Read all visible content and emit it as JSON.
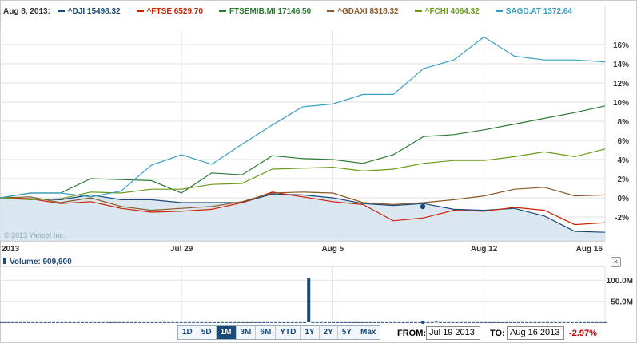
{
  "legend": {
    "date": "Aug 8, 2013:",
    "items": [
      {
        "label": "^DJI 15498.32",
        "color": "#1a4a7a"
      },
      {
        "label": "^FTSE 6529.70",
        "color": "#cc2200"
      },
      {
        "label": "FTSEMIB.MI 17146.50",
        "color": "#2a7a30"
      },
      {
        "label": "^GDAXI 8318.32",
        "color": "#8b5a2b"
      },
      {
        "label": "^FCHI 4064.32",
        "color": "#6a9a1a"
      },
      {
        "label": "SAGD.AT 1372.64",
        "color": "#3aa0c0"
      }
    ]
  },
  "copyright": "© 2013 Yahoo! Inc.",
  "volume_label": "Volume: 909,900",
  "close_label": "×",
  "controls": {
    "ranges": [
      "1D",
      "5D",
      "1M",
      "3M",
      "6M",
      "YTD",
      "1Y",
      "2Y",
      "5Y",
      "Max"
    ],
    "active_range": "1M",
    "from_label": "FROM:",
    "from_value": "Jul 19 2013",
    "to_label": "TO:",
    "to_value": "Aug 16 2013",
    "change": "-2.97%"
  },
  "chart_data": [
    {
      "type": "line",
      "x": [
        "2013",
        "",
        "",
        "",
        "",
        "",
        "Jul 29",
        "",
        "",
        "",
        "",
        "Aug 5",
        "",
        "",
        "",
        "",
        "Aug 12",
        "",
        "",
        "",
        "Aug 16"
      ],
      "x_tick_labels": [
        "2013",
        "Jul 29",
        "Aug 5",
        "Aug 12",
        "Aug 16"
      ],
      "y_tick_labels": [
        "-2%",
        "0%",
        "2%",
        "4%",
        "6%",
        "8%",
        "10%",
        "12%",
        "14%",
        "16%"
      ],
      "ylim": [
        -4.5,
        17.5
      ],
      "grid": true,
      "legend_position": "top",
      "series": [
        {
          "name": "^DJI",
          "color": "#1a4a7a",
          "fill": true,
          "values": [
            0,
            -0.1,
            -0.2,
            0.3,
            -0.2,
            -0.2,
            -0.5,
            -0.5,
            -0.5,
            0.4,
            0.3,
            0,
            -0.6,
            -0.8,
            -0.6,
            -1.2,
            -1.3,
            -1.1,
            -1.9,
            -3.5,
            -3.6
          ]
        },
        {
          "name": "^FTSE",
          "color": "#cc2200",
          "values": [
            0,
            -0.1,
            -0.6,
            -0.4,
            -1.1,
            -1.5,
            -1.4,
            -1.2,
            -0.5,
            0.6,
            0.1,
            -0.4,
            -0.7,
            -2.4,
            -2.1,
            -1.3,
            -1.4,
            -1.0,
            -1.3,
            -2.8,
            -2.6
          ]
        },
        {
          "name": "FTSEMIB.MI",
          "color": "#2a7a30",
          "values": [
            0,
            0.5,
            0.5,
            2.0,
            1.9,
            1.8,
            0.5,
            2.6,
            2.4,
            4.4,
            4.1,
            4.0,
            3.6,
            4.5,
            6.4,
            6.6,
            7.1,
            7.7,
            8.3,
            8.9,
            9.6
          ]
        },
        {
          "name": "^GDAXI",
          "color": "#8b5a2b",
          "values": [
            0,
            0.1,
            -0.5,
            0,
            -0.9,
            -1.3,
            -1.1,
            -0.9,
            -0.4,
            0.5,
            0.6,
            0.5,
            -0.5,
            -0.7,
            -0.5,
            -0.2,
            0.2,
            0.9,
            1.1,
            0.2,
            0.3
          ]
        },
        {
          "name": "^FCHI",
          "color": "#6a9a1a",
          "values": [
            0,
            -0.2,
            -0.1,
            0.6,
            0.5,
            0.9,
            0.9,
            1.4,
            1.5,
            3.0,
            3.1,
            3.2,
            2.8,
            3.0,
            3.6,
            3.9,
            3.9,
            4.3,
            4.8,
            4.3,
            5.1
          ]
        },
        {
          "name": "SAGD.AT",
          "color": "#3aa0c0",
          "values": [
            0,
            0.5,
            0.5,
            0.1,
            0.7,
            3.4,
            4.5,
            3.5,
            5.6,
            7.6,
            9.5,
            9.8,
            10.8,
            10.8,
            13.5,
            14.4,
            16.8,
            14.8,
            14.4,
            14.4,
            14.2
          ]
        }
      ]
    },
    {
      "type": "bar",
      "title": "Volume: 909,900",
      "y_tick_labels": [
        "50.0M",
        "100.0M"
      ],
      "ylim": [
        0,
        125
      ],
      "values": [
        0.3,
        0.3,
        0.3,
        0.3,
        0.3,
        0.3,
        0.3,
        0.3,
        0.3,
        0.3,
        0.3,
        0.3,
        0.3,
        0.3,
        0.3,
        0.3,
        0.3,
        0.3,
        0.3,
        0.3,
        0.3,
        0.3,
        0.3,
        0.3,
        0.3,
        0.3,
        0.3,
        0.3,
        0.3,
        0.3,
        0.3,
        0.3,
        0.3,
        0.3,
        0.3,
        0.3,
        0.3,
        0.3,
        0.3,
        0.3,
        0.3,
        0.3,
        0.3,
        0.3,
        0.3,
        0.3,
        0.3,
        0.3,
        0.3,
        0.3,
        0.3,
        0.3,
        0.3,
        0.3,
        0.3,
        0.3,
        0.3,
        0.3,
        0.3,
        0.3,
        0.3,
        0.3,
        0.3,
        0.3,
        0.3,
        0.3,
        0.3,
        0.3,
        0.3,
        0.3,
        0.3,
        0.3,
        0.3,
        0.3,
        0.3,
        105,
        0.3,
        0.3,
        0.3,
        0.3,
        0.3,
        0.3,
        0.3,
        0.3,
        0.3,
        0.3,
        0.3,
        0.3,
        0.3,
        0.3,
        0.3,
        0.3,
        0.3,
        0.3,
        0.3,
        0.3,
        0.3,
        0.3,
        0.3,
        0.3,
        0.3,
        0.3,
        0.3,
        0.3,
        0.3,
        0.3,
        1.2,
        0.3,
        0.3,
        0.3,
        0.3,
        0.3,
        0.3,
        0.3,
        0.3,
        0.3,
        0.3,
        0.3,
        0.3,
        0.3,
        0.3,
        0.3,
        0.3,
        0.3,
        0.3,
        0.3,
        0.3,
        0.3,
        0.3,
        0.3,
        0.3,
        0.3,
        0.3,
        0.3,
        0.3,
        0.3,
        0.3,
        0.3,
        0.3,
        0.3,
        0.3,
        0.3,
        0.3,
        0.3,
        0.3,
        0.3,
        0.3,
        0.3
      ]
    }
  ]
}
